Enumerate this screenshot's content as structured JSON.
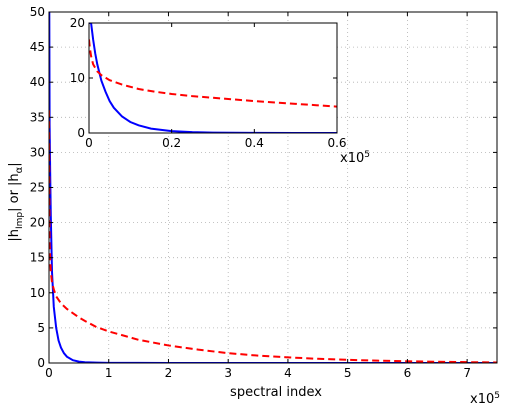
{
  "chart_data": {
    "type": "line",
    "main": {
      "xlabel": "spectral index",
      "ylabel_parts": {
        "h": "|h",
        "imp_sub": "Imp",
        "or": "| or |h",
        "alpha_sub": "α",
        "end": "|"
      },
      "x_multiplier_base": "x10",
      "x_multiplier_exp": "5",
      "xlim": [
        0,
        7.5
      ],
      "ylim": [
        0,
        50
      ],
      "xticks": [
        0,
        1,
        2,
        3,
        4,
        5,
        6,
        7
      ],
      "yticks": [
        0,
        5,
        10,
        15,
        20,
        25,
        30,
        35,
        40,
        45,
        50
      ],
      "grid": true,
      "series": [
        {
          "color": "#0000ff",
          "style": "solid",
          "x": [
            0.0,
            0.005,
            0.01,
            0.02,
            0.03,
            0.05,
            0.08,
            0.12,
            0.16,
            0.2,
            0.25,
            0.3,
            0.4,
            0.5,
            0.6,
            0.8,
            1.0,
            1.5,
            2.0,
            3.0,
            4.0,
            5.0,
            6.0,
            7.0,
            7.5
          ],
          "y": [
            50,
            50,
            34,
            27,
            21,
            13,
            8,
            5,
            3.2,
            2.2,
            1.4,
            0.9,
            0.4,
            0.2,
            0.1,
            0.05,
            0.02,
            0.01,
            0.0,
            0.0,
            0.0,
            0.0,
            0.0,
            0.0,
            0.0
          ]
        },
        {
          "color": "#ff0000",
          "style": "dashed",
          "x": [
            0.0,
            0.01,
            0.03,
            0.05,
            0.08,
            0.12,
            0.2,
            0.3,
            0.4,
            0.5,
            0.6,
            0.8,
            1.0,
            1.5,
            2.0,
            2.5,
            3.0,
            3.5,
            4.0,
            4.5,
            5.0,
            5.5,
            6.0,
            6.5,
            7.0,
            7.5
          ],
          "y": [
            36,
            17,
            13,
            11.5,
            10.5,
            9.5,
            8.5,
            7.7,
            7.1,
            6.5,
            6.0,
            5.1,
            4.5,
            3.3,
            2.5,
            1.9,
            1.4,
            1.05,
            0.8,
            0.6,
            0.45,
            0.33,
            0.25,
            0.18,
            0.12,
            0.08
          ]
        }
      ]
    },
    "inset": {
      "x_multiplier_base": "x10",
      "x_multiplier_exp": "5",
      "xlim": [
        0,
        0.6
      ],
      "ylim": [
        0,
        20
      ],
      "xticks": [
        0,
        0.2,
        0.4,
        0.6
      ],
      "yticks": [
        0,
        10,
        20
      ],
      "grid": false,
      "series": [
        {
          "color": "#0000ff",
          "style": "solid",
          "x": [
            0.0,
            0.005,
            0.01,
            0.015,
            0.02,
            0.03,
            0.04,
            0.05,
            0.06,
            0.08,
            0.1,
            0.12,
            0.15,
            0.2,
            0.25,
            0.3,
            0.4,
            0.5,
            0.6
          ],
          "y": [
            20,
            20,
            17,
            14.5,
            12.5,
            9.5,
            7.5,
            5.8,
            4.6,
            3.0,
            2.0,
            1.4,
            0.8,
            0.35,
            0.15,
            0.06,
            0.02,
            0.0,
            0.0
          ]
        },
        {
          "color": "#ff0000",
          "style": "dashed",
          "x": [
            0.0,
            0.002,
            0.005,
            0.01,
            0.02,
            0.03,
            0.05,
            0.08,
            0.12,
            0.16,
            0.2,
            0.25,
            0.3,
            0.35,
            0.4,
            0.45,
            0.5,
            0.55,
            0.6
          ],
          "y": [
            17,
            15.5,
            14,
            12.5,
            11.2,
            10.5,
            9.6,
            8.8,
            8.0,
            7.5,
            7.1,
            6.7,
            6.4,
            6.1,
            5.8,
            5.55,
            5.3,
            5.05,
            4.8
          ]
        }
      ]
    }
  }
}
